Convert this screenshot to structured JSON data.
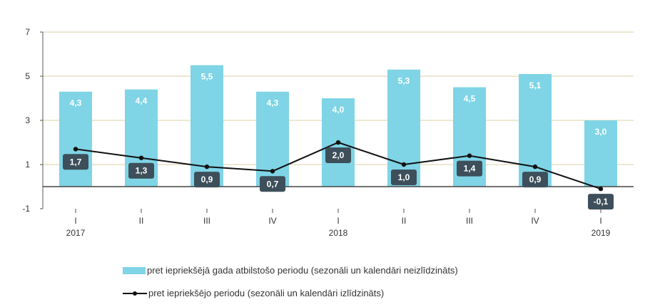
{
  "chart_data": {
    "type": "bar",
    "categories": [
      "I",
      "II",
      "III",
      "IV",
      "I",
      "II",
      "III",
      "IV",
      "I"
    ],
    "years": [
      {
        "label": "2017",
        "index": 0
      },
      {
        "label": "2018",
        "index": 4
      },
      {
        "label": "2019",
        "index": 8
      }
    ],
    "ylim": [
      -1,
      7
    ],
    "yticks": [
      -1,
      1,
      3,
      5,
      7
    ],
    "grid": true,
    "legend_position": "bottom",
    "series": [
      {
        "name": "pret iepriekšējā gada atbilstošo periodu (sezonāli un kalendāri neizlīdzināts)",
        "type": "bar",
        "color": "#7fd4e6",
        "values": [
          4.3,
          4.4,
          5.5,
          4.3,
          4.0,
          5.3,
          4.5,
          5.1,
          3.0
        ],
        "labels": [
          "4,3",
          "4,4",
          "5,5",
          "4,3",
          "4,0",
          "5,3",
          "4,5",
          "5,1",
          "3,0"
        ]
      },
      {
        "name": "pret iepriekšējo periodu (sezonāli un kalendāri izlīdzināts)",
        "type": "line",
        "color": "#111111",
        "values": [
          1.7,
          1.3,
          0.9,
          0.7,
          2.0,
          1.0,
          1.4,
          0.9,
          -0.1
        ],
        "labels": [
          "1,7",
          "1,3",
          "0,9",
          "0,7",
          "2,0",
          "1,0",
          "1,4",
          "0,9",
          "-0,1"
        ]
      }
    ]
  }
}
